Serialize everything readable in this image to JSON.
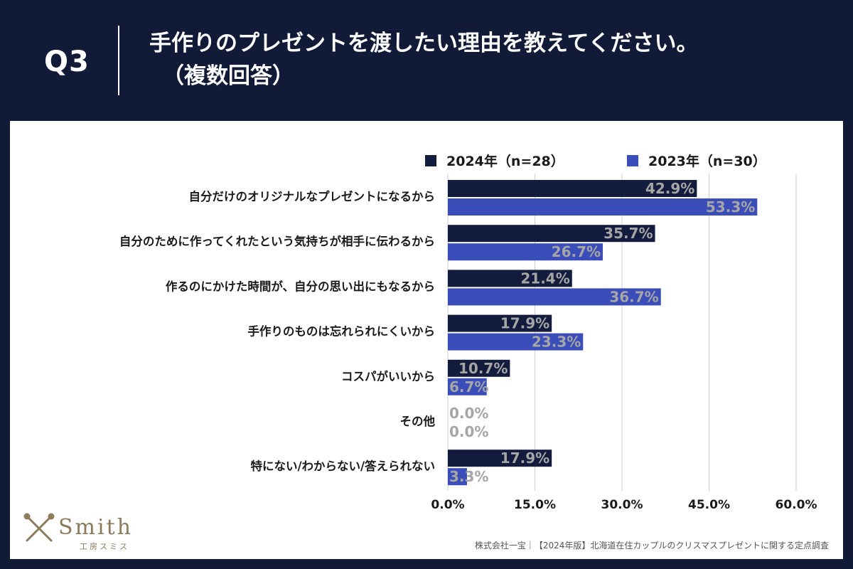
{
  "header": {
    "question_no": "Q3",
    "title_line1": "手作りのプレゼントを渡したい理由を教えてください。",
    "title_line2": "（複数回答）"
  },
  "colors": {
    "background": "#111a36",
    "series_2024": "#141c3d",
    "series_2023": "#3a4db8",
    "label_text": "#a6a6a6",
    "grid": "#cfcfcf"
  },
  "chart_data": {
    "type": "bar",
    "orientation": "horizontal",
    "categories": [
      "自分だけのオリジナルなプレゼントになるから",
      "自分のために作ってくれたという気持ちが相手に伝わるから",
      "作るのにかけた時間が、自分の思い出にもなるから",
      "手作りのものは忘れられにくいから",
      "コスパがいいから",
      "その他",
      "特にない/わからない/答えられない"
    ],
    "series": [
      {
        "name": "2024年（n=28）",
        "values": [
          42.9,
          35.7,
          21.4,
          17.9,
          10.7,
          0.0,
          17.9
        ],
        "labels": [
          "42.9%",
          "35.7%",
          "21.4%",
          "17.9%",
          "10.7%",
          "0.0%",
          "17.9%"
        ]
      },
      {
        "name": "2023年（n=30）",
        "values": [
          53.3,
          26.7,
          36.7,
          23.3,
          6.7,
          0.0,
          3.3
        ],
        "labels": [
          "53.3%",
          "26.7%",
          "36.7%",
          "23.3%",
          "6.7%",
          "0.0%",
          "3.3%"
        ]
      }
    ],
    "xlim": [
      0,
      60
    ],
    "xticks": [
      0,
      15,
      30,
      45,
      60
    ],
    "xtick_labels": [
      "0.0%",
      "15.0%",
      "30.0%",
      "45.0%",
      "60.0%"
    ],
    "grid": true,
    "legend": "top-right"
  },
  "logo": {
    "name": "Smith",
    "subtitle": "工房スミス"
  },
  "footer": {
    "source": "株式会社一宝｜【2024年版】北海道在住カップルのクリスマスプレゼントに関する定点調査"
  }
}
